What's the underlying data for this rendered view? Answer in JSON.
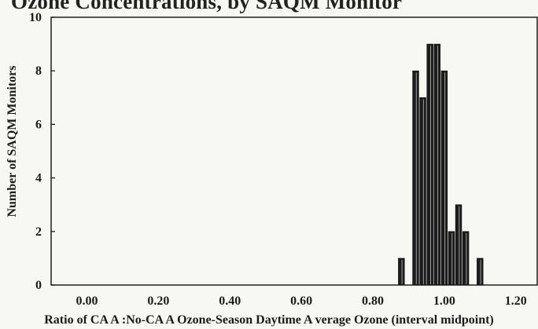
{
  "page": {
    "partial_title": "Ozone Concentrations, by SAQM Monitor"
  },
  "chart_data": {
    "type": "bar",
    "xlabel": "Ratio of CA A :No-CA A  Ozone-Season Daytime A verage Ozone (interval midpoint)",
    "ylabel": "Number of SAQM Monitors",
    "xlim": [
      -0.1,
      1.26
    ],
    "ylim": [
      0,
      10
    ],
    "x_ticks": [
      "0.00",
      "0.20",
      "0.40",
      "0.60",
      "0.80",
      "1.00",
      "1.20"
    ],
    "x_tick_values": [
      0.0,
      0.2,
      0.4,
      0.6,
      0.8,
      1.0,
      1.2
    ],
    "y_ticks": [
      "0",
      "2",
      "4",
      "6",
      "8",
      "10"
    ],
    "y_tick_values": [
      0,
      2,
      4,
      6,
      8,
      10
    ],
    "bin_width": 0.02,
    "x": [
      0.88,
      0.92,
      0.94,
      0.96,
      0.98,
      1.0,
      1.02,
      1.04,
      1.06,
      1.1
    ],
    "values": [
      1,
      8,
      7,
      9,
      9,
      8,
      2,
      3,
      2,
      1
    ],
    "bar_color": "#1c1c1c",
    "background": "#f7f7f4",
    "grid": false
  }
}
